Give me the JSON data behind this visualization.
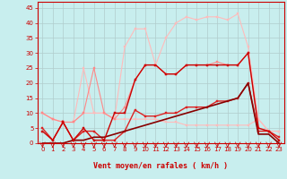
{
  "title": "",
  "xlabel": "Vent moyen/en rafales ( km/h )",
  "ylabel": "",
  "xlim": [
    -0.5,
    23.5
  ],
  "ylim": [
    0,
    47
  ],
  "yticks": [
    0,
    5,
    10,
    15,
    20,
    25,
    30,
    35,
    40,
    45
  ],
  "xticks": [
    0,
    1,
    2,
    3,
    4,
    5,
    6,
    7,
    8,
    9,
    10,
    11,
    12,
    13,
    14,
    15,
    16,
    17,
    18,
    19,
    20,
    21,
    22,
    23
  ],
  "bg_color": "#c8eeee",
  "grid_color": "#b0cccc",
  "series": [
    {
      "x": [
        0,
        1,
        2,
        3,
        4,
        5,
        6,
        7,
        8,
        9,
        10,
        11,
        12,
        13,
        14,
        15,
        16,
        17,
        18,
        19,
        20,
        21,
        22,
        23
      ],
      "y": [
        10,
        8,
        7,
        7,
        10,
        10,
        10,
        8,
        8,
        8,
        8,
        8,
        7,
        7,
        6,
        6,
        6,
        6,
        6,
        6,
        6,
        8,
        4,
        4
      ],
      "color": "#ffbbbb",
      "lw": 0.8,
      "marker": "s",
      "ms": 1.5
    },
    {
      "x": [
        0,
        1,
        2,
        3,
        4,
        5,
        6,
        7,
        8,
        9,
        10,
        11,
        12,
        13,
        14,
        15,
        16,
        17,
        18,
        19,
        20,
        21,
        22,
        23
      ],
      "y": [
        10,
        8,
        7,
        7,
        25,
        10,
        10,
        8,
        32,
        38,
        38,
        26,
        35,
        40,
        42,
        41,
        42,
        42,
        41,
        43,
        32,
        8,
        4,
        4
      ],
      "color": "#ffbbbb",
      "lw": 0.8,
      "marker": "s",
      "ms": 1.5
    },
    {
      "x": [
        0,
        1,
        2,
        3,
        4,
        5,
        6,
        7,
        8,
        9,
        10,
        11,
        12,
        13,
        14,
        15,
        16,
        17,
        18,
        19,
        20,
        21,
        22,
        23
      ],
      "y": [
        10,
        8,
        7,
        7,
        10,
        25,
        10,
        8,
        12,
        21,
        26,
        26,
        23,
        23,
        26,
        26,
        26,
        27,
        26,
        26,
        30,
        5,
        4,
        1
      ],
      "color": "#ff8888",
      "lw": 0.8,
      "marker": "s",
      "ms": 1.5
    },
    {
      "x": [
        0,
        1,
        2,
        3,
        4,
        5,
        6,
        7,
        8,
        9,
        10,
        11,
        12,
        13,
        14,
        15,
        16,
        17,
        18,
        19,
        20,
        21,
        22,
        23
      ],
      "y": [
        5,
        1,
        7,
        1,
        4,
        4,
        1,
        1,
        4,
        11,
        9,
        9,
        10,
        10,
        12,
        12,
        12,
        14,
        14,
        15,
        20,
        4,
        4,
        2
      ],
      "color": "#dd2222",
      "lw": 1.0,
      "marker": "s",
      "ms": 1.5
    },
    {
      "x": [
        0,
        1,
        2,
        3,
        4,
        5,
        6,
        7,
        8,
        9,
        10,
        11,
        12,
        13,
        14,
        15,
        16,
        17,
        18,
        19,
        20,
        21,
        22,
        23
      ],
      "y": [
        0,
        0,
        0,
        1,
        1,
        2,
        2,
        3,
        4,
        5,
        6,
        7,
        8,
        9,
        10,
        11,
        12,
        13,
        14,
        15,
        20,
        3,
        3,
        0
      ],
      "color": "#880000",
      "lw": 1.2,
      "marker": null,
      "ms": 0
    },
    {
      "x": [
        0,
        1,
        2,
        3,
        4,
        5,
        6,
        7,
        8,
        9,
        10,
        11,
        12,
        13,
        14,
        15,
        16,
        17,
        18,
        19,
        20,
        21,
        22,
        23
      ],
      "y": [
        4,
        1,
        7,
        1,
        5,
        1,
        1,
        10,
        10,
        21,
        26,
        26,
        23,
        23,
        26,
        26,
        26,
        26,
        26,
        26,
        30,
        5,
        4,
        1
      ],
      "color": "#cc0000",
      "lw": 1.0,
      "marker": "s",
      "ms": 1.5
    }
  ],
  "xlabel_fontsize": 6,
  "tick_fontsize": 5,
  "xlabel_bold": true
}
